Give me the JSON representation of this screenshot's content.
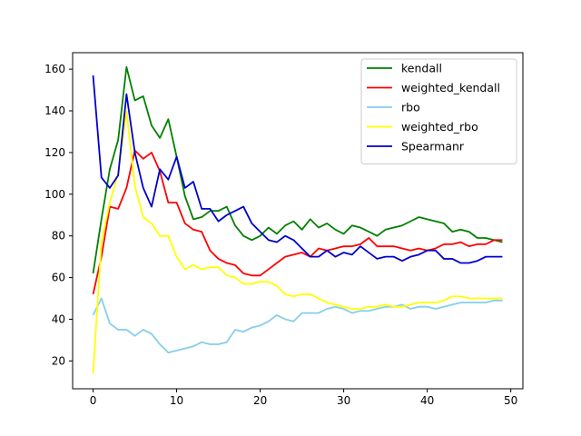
{
  "chart_data": {
    "type": "line",
    "title": "",
    "xlabel": "",
    "ylabel": "",
    "xlim": [
      -2.45,
      51.45
    ],
    "ylim": [
      6.65,
      167.9
    ],
    "xticks": [
      0,
      10,
      20,
      30,
      40,
      50
    ],
    "yticks": [
      20,
      40,
      60,
      80,
      100,
      120,
      140,
      160
    ],
    "grid": false,
    "legend_position": "top-right",
    "x": [
      0,
      1,
      2,
      3,
      4,
      5,
      6,
      7,
      8,
      9,
      10,
      11,
      12,
      13,
      14,
      15,
      16,
      17,
      18,
      19,
      20,
      21,
      22,
      23,
      24,
      25,
      26,
      27,
      28,
      29,
      30,
      31,
      32,
      33,
      34,
      35,
      36,
      37,
      38,
      39,
      40,
      41,
      42,
      43,
      44,
      45,
      46,
      47,
      48,
      49
    ],
    "series": [
      {
        "name": "kendall",
        "color": "#008000",
        "values": [
          62,
          88,
          112,
          126,
          161,
          145,
          147,
          133,
          127,
          136,
          118,
          99,
          88,
          89,
          92,
          92,
          94,
          85,
          80,
          78,
          80,
          84,
          81,
          85,
          87,
          83,
          88,
          84,
          86,
          83,
          81,
          85,
          84,
          82,
          80,
          83,
          84,
          85,
          87,
          89,
          88,
          87,
          86,
          82,
          83,
          82,
          79,
          79,
          78,
          77
        ]
      },
      {
        "name": "weighted_kendall",
        "color": "#ff0000",
        "values": [
          52,
          70,
          94,
          93,
          103,
          121,
          117,
          120,
          111,
          96,
          96,
          86,
          83,
          82,
          73,
          69,
          67,
          66,
          62,
          61,
          61,
          64,
          67,
          70,
          71,
          72,
          70,
          74,
          73,
          74,
          75,
          75,
          76,
          79,
          75,
          75,
          75,
          74,
          73,
          74,
          73,
          74,
          76,
          76,
          77,
          75,
          76,
          76,
          78,
          78
        ]
      },
      {
        "name": "rbo",
        "color": "#87ceeb",
        "values": [
          42,
          50,
          38,
          35,
          35,
          32,
          35,
          33,
          28,
          24,
          25,
          26,
          27,
          29,
          28,
          28,
          29,
          35,
          34,
          36,
          37,
          39,
          42,
          40,
          39,
          43,
          43,
          43,
          45,
          46,
          45,
          43,
          44,
          44,
          45,
          46,
          46,
          47,
          45,
          46,
          46,
          45,
          46,
          47,
          48,
          48,
          48,
          48,
          49,
          49
        ]
      },
      {
        "name": "weighted_rbo",
        "color": "#ffff00",
        "values": [
          14,
          77,
          96,
          110,
          140,
          104,
          89,
          86,
          80,
          80,
          70,
          64,
          66,
          64,
          65,
          65,
          61,
          60,
          57,
          57,
          58,
          58,
          56,
          52,
          51,
          52,
          52,
          50,
          48,
          47,
          46,
          45,
          45,
          46,
          46,
          47,
          46,
          46,
          47,
          48,
          48,
          48,
          49,
          51,
          51,
          50,
          50,
          50,
          50,
          50
        ]
      },
      {
        "name": "Spearmanr",
        "color": "#0000cd",
        "values": [
          157,
          108,
          103,
          109,
          148,
          120,
          103,
          94,
          112,
          107,
          118,
          103,
          106,
          93,
          93,
          87,
          90,
          92,
          94,
          86,
          82,
          78,
          77,
          80,
          78,
          74,
          70,
          70,
          73,
          70,
          72,
          71,
          75,
          72,
          69,
          70,
          70,
          68,
          70,
          71,
          73,
          73,
          69,
          69,
          67,
          67,
          68,
          70,
          70,
          70
        ]
      }
    ]
  }
}
